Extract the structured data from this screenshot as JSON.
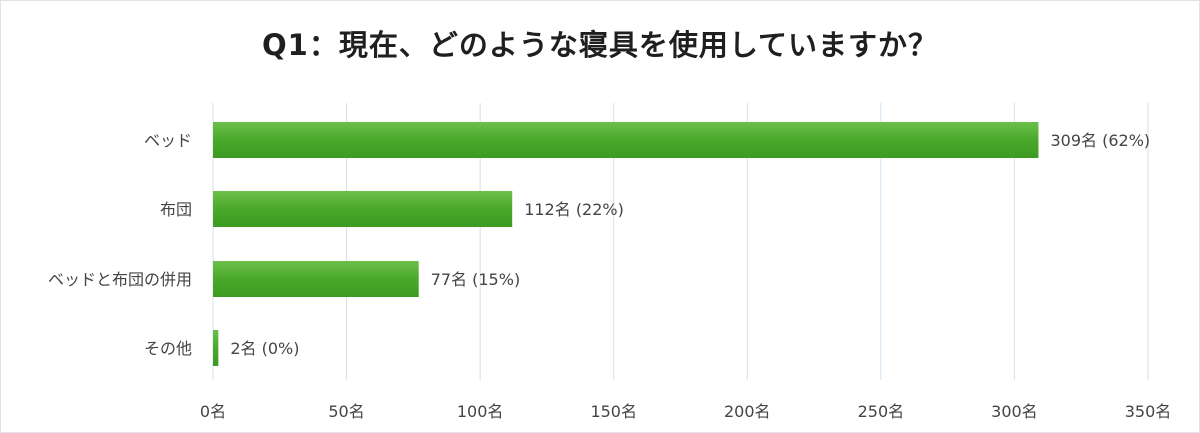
{
  "chart_data": {
    "type": "bar",
    "orientation": "horizontal",
    "title": "Q1：現在、どのような寝具を使用していますか？",
    "categories": [
      "ベッド",
      "布団",
      "ベッドと布団の併用",
      "その他"
    ],
    "values": [
      309,
      112,
      77,
      2
    ],
    "percents": [
      "62%",
      "22%",
      "15%",
      "0%"
    ],
    "value_labels": [
      "309名 (62%)",
      "112名 (22%)",
      "77名 (15%)",
      "2名 (0%)"
    ],
    "x_ticks": [
      0,
      50,
      100,
      150,
      200,
      250,
      300,
      350
    ],
    "x_tick_labels": [
      "0名",
      "50名",
      "100名",
      "150名",
      "200名",
      "250名",
      "300名",
      "350名"
    ],
    "xlim": [
      0,
      350
    ],
    "grid": true,
    "bar_color": "#4aa82a",
    "grid_color": "#cfe1ee"
  }
}
